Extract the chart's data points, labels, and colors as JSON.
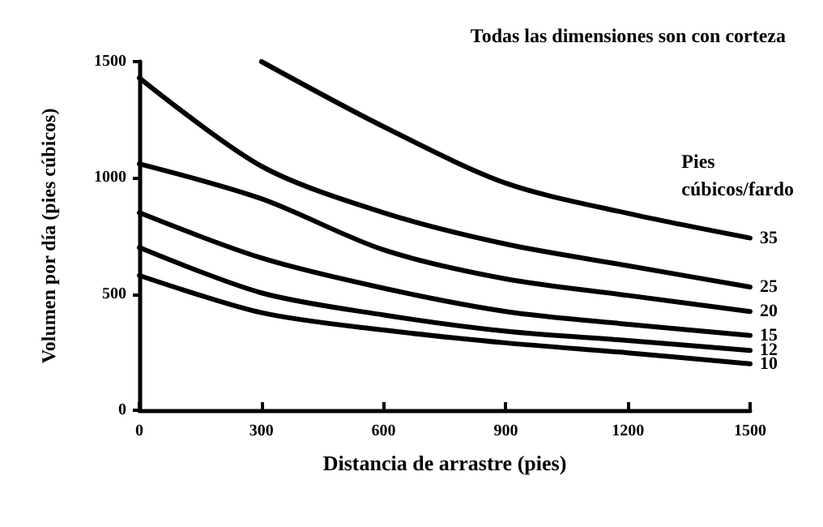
{
  "chart_data": {
    "type": "line",
    "xlabel": "Distancia de arrastre (pies)",
    "ylabel": "Volumen por día (pies cúbicos)",
    "legend_title": "Pies cúbicos/fardo",
    "annotations": [
      "Todas las dimensiones son con corteza"
    ],
    "x": [
      0,
      300,
      600,
      900,
      1200,
      1500
    ],
    "series": [
      {
        "name": "35",
        "color": "#000000",
        "x": [
          300,
          600,
          900,
          1200,
          1500
        ],
        "values": [
          1500,
          1220,
          977,
          847,
          741
        ]
      },
      {
        "name": "25",
        "color": "#000000",
        "values": [
          1430,
          1050,
          850,
          715,
          622,
          530
        ]
      },
      {
        "name": "20",
        "color": "#000000",
        "values": [
          1060,
          910,
          690,
          565,
          494,
          425
        ]
      },
      {
        "name": "15",
        "color": "#000000",
        "values": [
          850,
          655,
          525,
          425,
          370,
          322
        ]
      },
      {
        "name": "12",
        "color": "#000000",
        "values": [
          700,
          505,
          410,
          340,
          300,
          257
        ]
      },
      {
        "name": "10",
        "color": "#000000",
        "values": [
          580,
          420,
          345,
          290,
          247,
          200
        ]
      }
    ],
    "xlim": [
      0,
      1500
    ],
    "xticks": [
      0,
      300,
      600,
      900,
      1200,
      1500
    ],
    "ylim": [
      0,
      1500
    ],
    "yticks": [
      0,
      500,
      1000,
      1500
    ],
    "grid": false,
    "legend": false,
    "marker": "none",
    "line_style": "solid"
  }
}
